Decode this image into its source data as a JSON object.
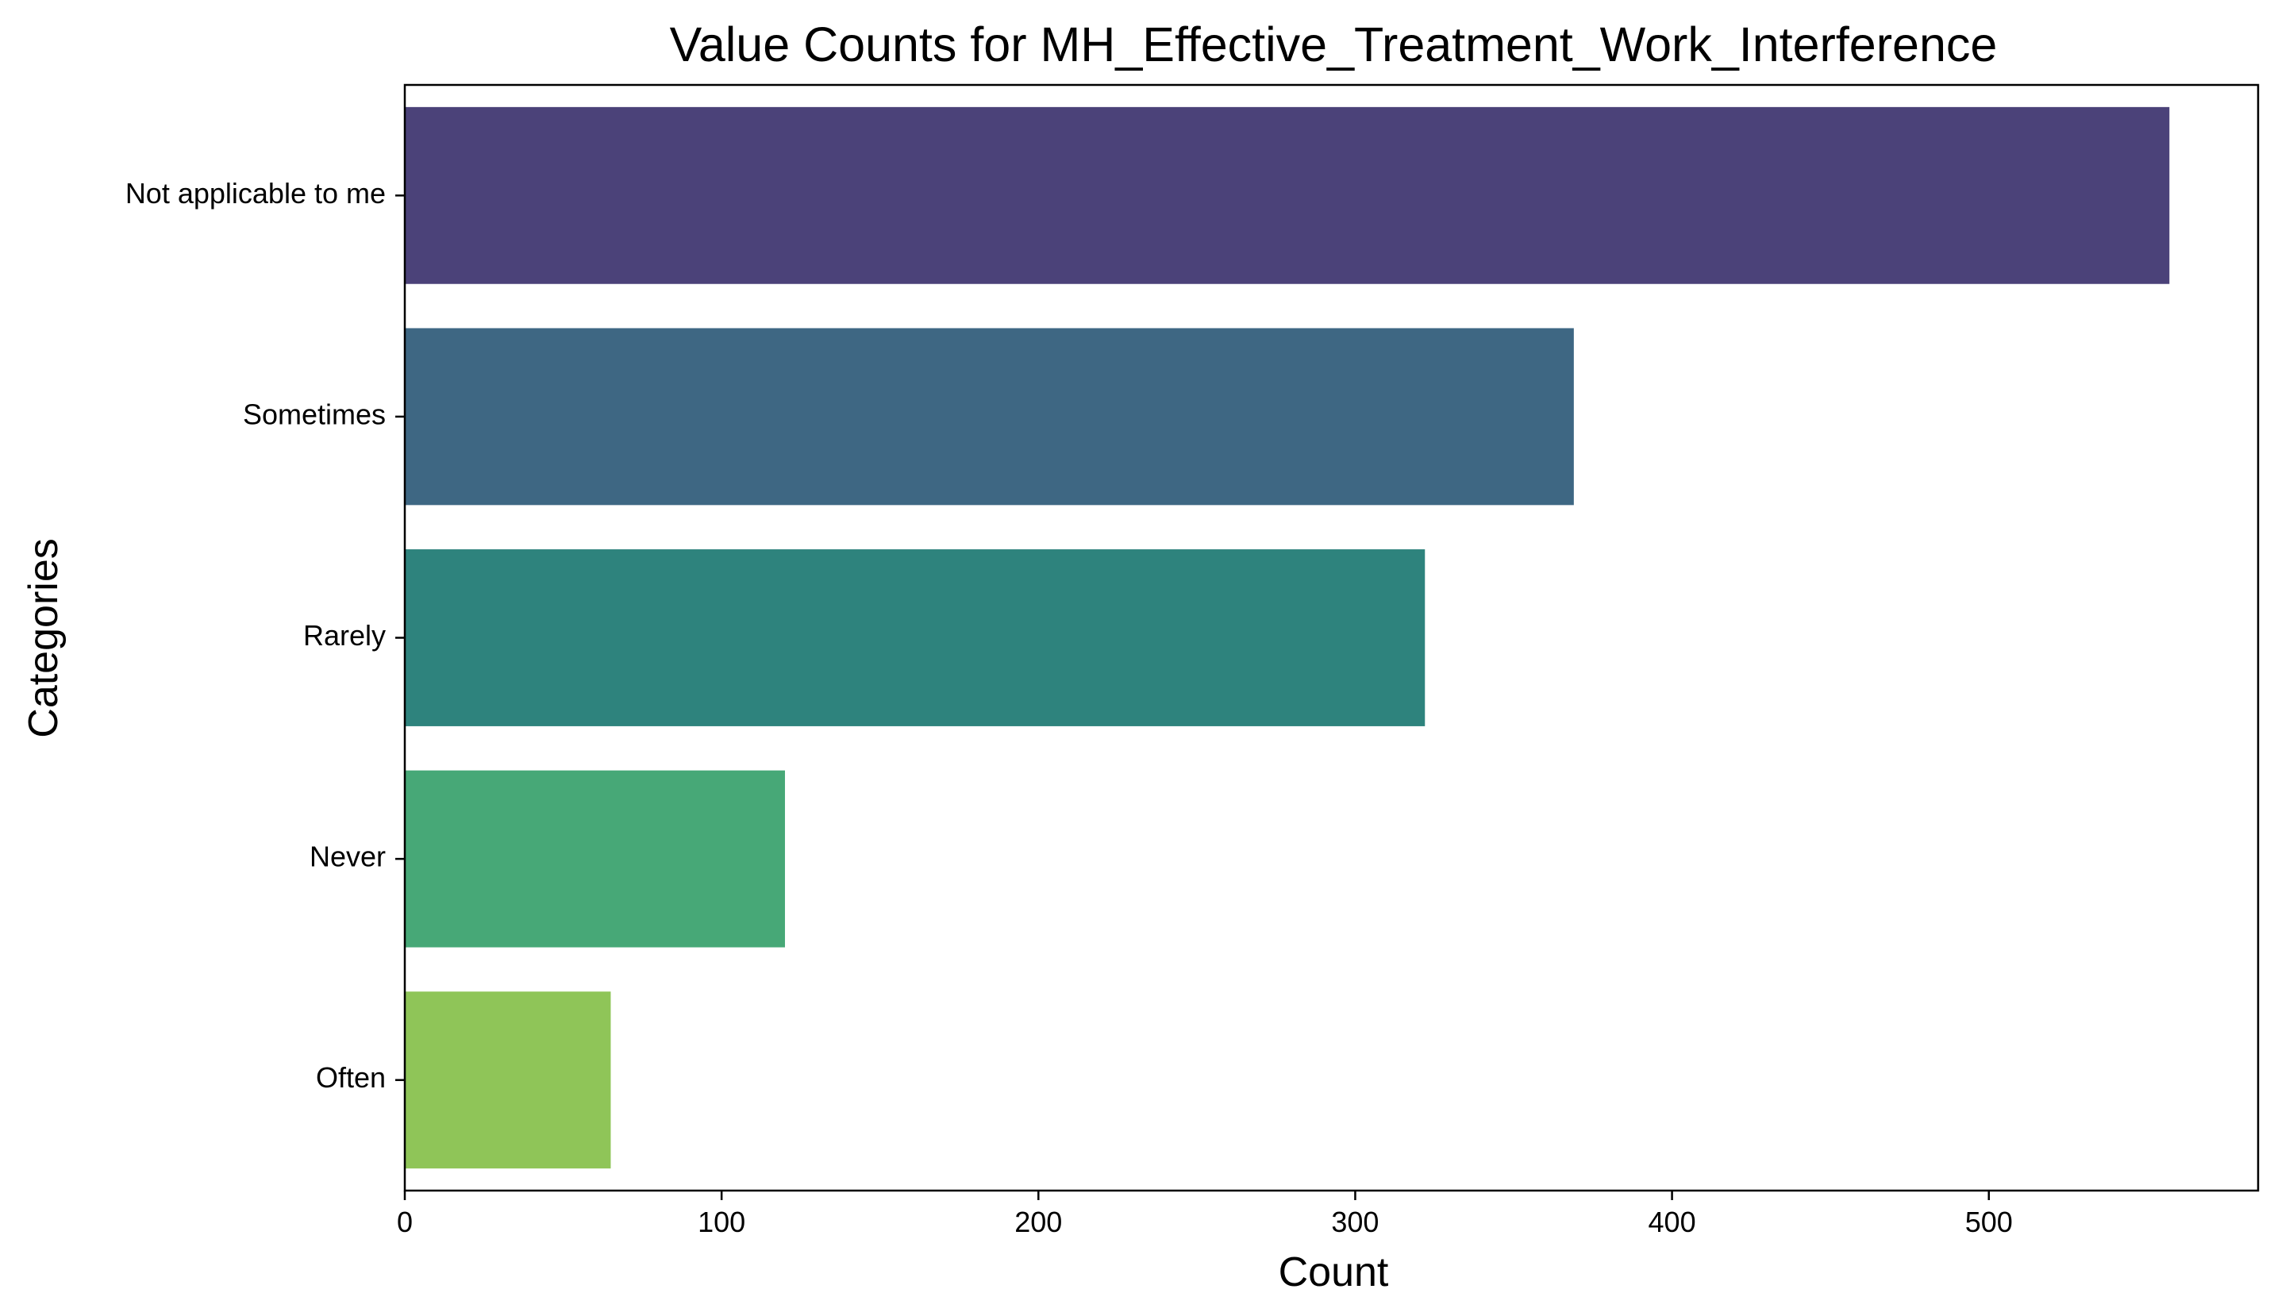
{
  "chart_data": {
    "type": "bar",
    "orientation": "horizontal",
    "title": "Value Counts for MH_Effective_Treatment_Work_Interference",
    "xlabel": "Count",
    "ylabel": "Categories",
    "categories": [
      "Not applicable to me",
      "Sometimes",
      "Rarely",
      "Never",
      "Often"
    ],
    "values": [
      557,
      369,
      322,
      120,
      65
    ],
    "colors": [
      "#4b4279",
      "#3e6783",
      "#2e837d",
      "#47a877",
      "#8fc558"
    ],
    "xlim": [
      0,
      585
    ],
    "xticks": [
      0,
      100,
      200,
      300,
      400,
      500
    ],
    "grid": false,
    "legend": "none"
  }
}
